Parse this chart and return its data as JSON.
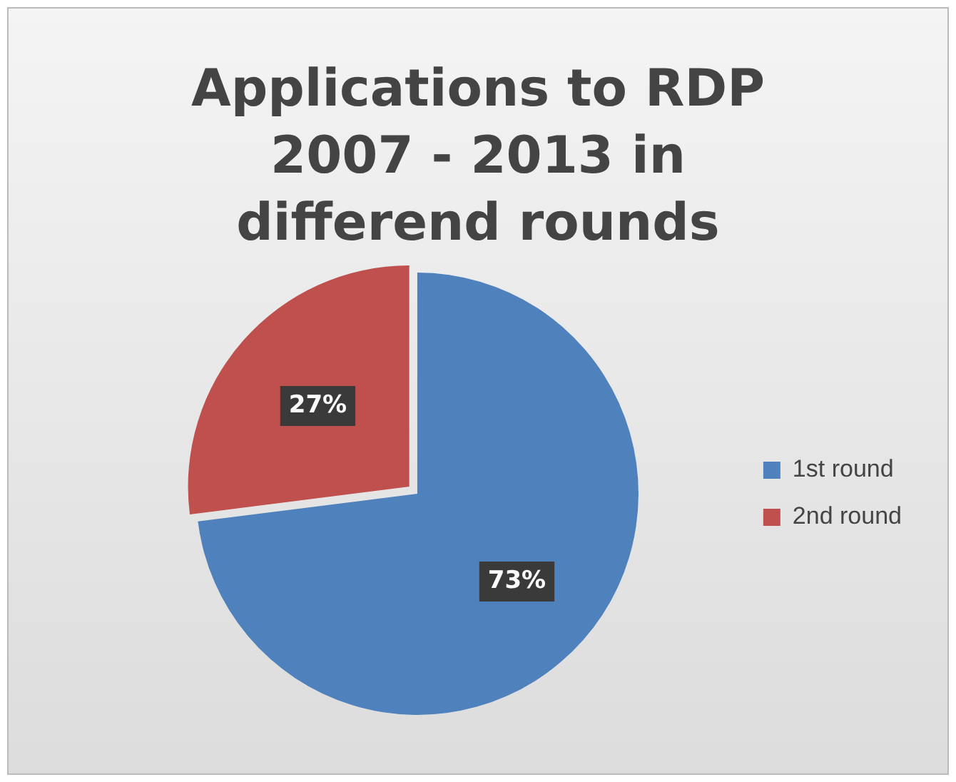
{
  "chart_data": {
    "type": "pie",
    "title": "Applications to RDP 2007 - 2013 in differend rounds",
    "categories": [
      "1st round",
      "2nd round"
    ],
    "values": [
      73,
      27
    ],
    "colors": [
      "#4f81bd",
      "#c0504d"
    ],
    "value_labels": [
      "73%",
      "27%"
    ],
    "legend": "right"
  }
}
